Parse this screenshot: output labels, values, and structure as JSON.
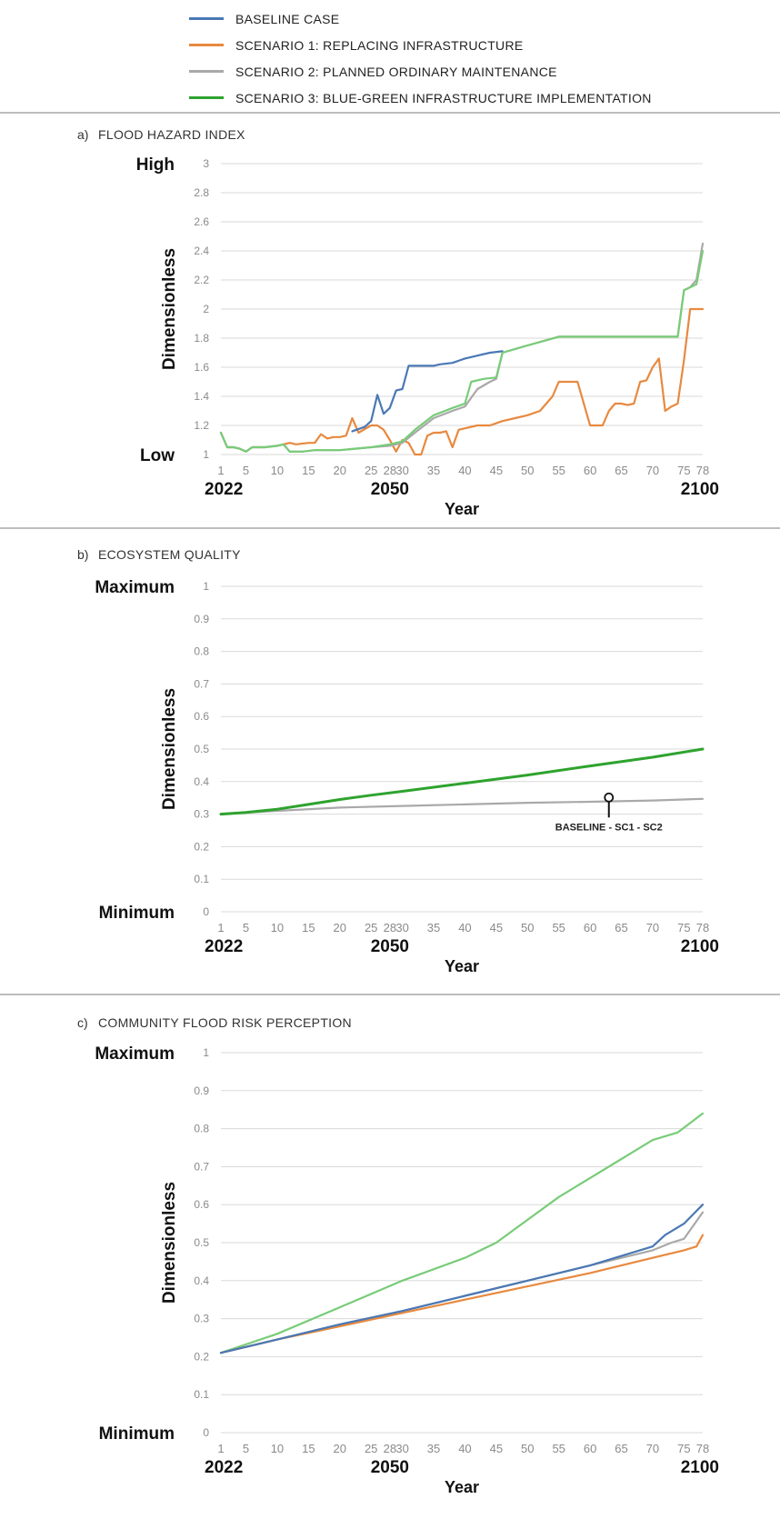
{
  "colors": {
    "baseline": "#4a78b4",
    "sc1": "#e8893f",
    "sc2": "#a9a9a9",
    "sc3": "#2ea32e",
    "sc3_light": "#78cc78",
    "grid": "#dadada"
  },
  "legend": [
    {
      "label": "BASELINE CASE",
      "color": "#4a78b4"
    },
    {
      "label": "SCENARIO 1: REPLACING INFRASTRUCTURE",
      "color": "#e8893f"
    },
    {
      "label": "SCENARIO 2: PLANNED ORDINARY MAINTENANCE",
      "color": "#a9a9a9"
    },
    {
      "label": "SCENARIO 3: BLUE-GREEN INFRASTRUCTURE IMPLEMENTATION",
      "color": "#2ea32e"
    }
  ],
  "chart_data": [
    {
      "type": "line",
      "panel_letter": "a)",
      "title": "FLOOD HAZARD INDEX",
      "ylabel": "Dimensionless",
      "xlabel": "Year",
      "ylim": [
        1,
        3
      ],
      "yticks": [
        "1",
        "1.2",
        "1.4",
        "1.6",
        "1.8",
        "2",
        "2.2",
        "2.4",
        "2.6",
        "2.8",
        "3"
      ],
      "ytick_values": [
        1,
        1.2,
        1.4,
        1.6,
        1.8,
        2,
        2.2,
        2.4,
        2.6,
        2.8,
        3
      ],
      "y_top_label": "High",
      "y_bottom_label": "Low",
      "xlim": [
        1,
        78
      ],
      "xticks": [
        "1",
        "5",
        "10",
        "15",
        "20",
        "25",
        "28",
        "30",
        "35",
        "40",
        "45",
        "50",
        "55",
        "60",
        "65",
        "70",
        "75",
        "78"
      ],
      "year_labels": [
        {
          "x": 1,
          "label": "2022"
        },
        {
          "x": 28,
          "label": "2050"
        },
        {
          "x": 78,
          "label": "2100"
        }
      ],
      "grid": true,
      "series": [
        {
          "key": "sc1",
          "color": "#e8893f",
          "points": [
            [
              1,
              1.15
            ],
            [
              2,
              1.05
            ],
            [
              3,
              1.05
            ],
            [
              4,
              1.04
            ],
            [
              5,
              1.02
            ],
            [
              6,
              1.05
            ],
            [
              8,
              1.05
            ],
            [
              10,
              1.06
            ],
            [
              11,
              1.07
            ],
            [
              12,
              1.08
            ],
            [
              13,
              1.07
            ],
            [
              15,
              1.08
            ],
            [
              16,
              1.08
            ],
            [
              17,
              1.14
            ],
            [
              18,
              1.11
            ],
            [
              19,
              1.12
            ],
            [
              20,
              1.12
            ],
            [
              21,
              1.13
            ],
            [
              22,
              1.25
            ],
            [
              23,
              1.15
            ],
            [
              25,
              1.2
            ],
            [
              26,
              1.2
            ],
            [
              27,
              1.17
            ],
            [
              28,
              1.1
            ],
            [
              29,
              1.02
            ],
            [
              30,
              1.1
            ],
            [
              31,
              1.08
            ],
            [
              32,
              1.0
            ],
            [
              33,
              1.0
            ],
            [
              34,
              1.13
            ],
            [
              35,
              1.15
            ],
            [
              36,
              1.15
            ],
            [
              37,
              1.16
            ],
            [
              38,
              1.05
            ],
            [
              39,
              1.17
            ],
            [
              40,
              1.18
            ],
            [
              42,
              1.2
            ],
            [
              44,
              1.2
            ],
            [
              46,
              1.23
            ],
            [
              48,
              1.25
            ],
            [
              50,
              1.27
            ],
            [
              52,
              1.3
            ],
            [
              54,
              1.4
            ],
            [
              55,
              1.5
            ],
            [
              57,
              1.5
            ],
            [
              58,
              1.5
            ],
            [
              60,
              1.2
            ],
            [
              62,
              1.2
            ],
            [
              63,
              1.3
            ],
            [
              64,
              1.35
            ],
            [
              65,
              1.35
            ],
            [
              66,
              1.34
            ],
            [
              67,
              1.35
            ],
            [
              68,
              1.5
            ],
            [
              69,
              1.51
            ],
            [
              70,
              1.6
            ],
            [
              71,
              1.66
            ],
            [
              72,
              1.3
            ],
            [
              73,
              1.33
            ],
            [
              74,
              1.35
            ],
            [
              75,
              1.65
            ],
            [
              76,
              2.0
            ],
            [
              77,
              2.0
            ],
            [
              78,
              2.0
            ]
          ]
        },
        {
          "key": "sc2",
          "color": "#a9a9a9",
          "points": [
            [
              1,
              1.15
            ],
            [
              2,
              1.05
            ],
            [
              3,
              1.05
            ],
            [
              4,
              1.04
            ],
            [
              5,
              1.02
            ],
            [
              6,
              1.05
            ],
            [
              8,
              1.05
            ],
            [
              10,
              1.06
            ],
            [
              11,
              1.07
            ],
            [
              12,
              1.02
            ],
            [
              14,
              1.02
            ],
            [
              16,
              1.03
            ],
            [
              18,
              1.03
            ],
            [
              20,
              1.03
            ],
            [
              25,
              1.05
            ],
            [
              28,
              1.06
            ],
            [
              30,
              1.08
            ],
            [
              32,
              1.15
            ],
            [
              35,
              1.25
            ],
            [
              38,
              1.3
            ],
            [
              40,
              1.33
            ],
            [
              42,
              1.45
            ],
            [
              44,
              1.5
            ],
            [
              45,
              1.52
            ],
            [
              46,
              1.7
            ],
            [
              50,
              1.75
            ],
            [
              55,
              1.81
            ],
            [
              60,
              1.81
            ],
            [
              65,
              1.81
            ],
            [
              70,
              1.81
            ],
            [
              74,
              1.81
            ],
            [
              75,
              2.13
            ],
            [
              76,
              2.15
            ],
            [
              77,
              2.2
            ],
            [
              78,
              2.45
            ]
          ]
        },
        {
          "key": "baseline",
          "color": "#4a78b4",
          "points": [
            [
              22,
              1.16
            ],
            [
              24,
              1.19
            ],
            [
              25,
              1.23
            ],
            [
              26,
              1.41
            ],
            [
              27,
              1.28
            ],
            [
              28,
              1.32
            ],
            [
              29,
              1.44
            ],
            [
              30,
              1.45
            ],
            [
              31,
              1.61
            ],
            [
              33,
              1.61
            ],
            [
              35,
              1.61
            ],
            [
              36,
              1.62
            ],
            [
              38,
              1.63
            ],
            [
              40,
              1.66
            ],
            [
              42,
              1.68
            ],
            [
              44,
              1.7
            ],
            [
              46,
              1.71
            ]
          ]
        },
        {
          "key": "sc3",
          "color": "#78cc78",
          "points": [
            [
              1,
              1.15
            ],
            [
              2,
              1.05
            ],
            [
              3,
              1.05
            ],
            [
              4,
              1.04
            ],
            [
              5,
              1.02
            ],
            [
              6,
              1.05
            ],
            [
              8,
              1.05
            ],
            [
              10,
              1.06
            ],
            [
              11,
              1.07
            ],
            [
              12,
              1.02
            ],
            [
              14,
              1.02
            ],
            [
              16,
              1.03
            ],
            [
              18,
              1.03
            ],
            [
              20,
              1.03
            ],
            [
              25,
              1.05
            ],
            [
              28,
              1.07
            ],
            [
              30,
              1.09
            ],
            [
              32,
              1.17
            ],
            [
              35,
              1.27
            ],
            [
              38,
              1.32
            ],
            [
              40,
              1.35
            ],
            [
              41,
              1.5
            ],
            [
              43,
              1.52
            ],
            [
              45,
              1.53
            ],
            [
              46,
              1.7
            ],
            [
              50,
              1.75
            ],
            [
              55,
              1.81
            ],
            [
              60,
              1.81
            ],
            [
              65,
              1.81
            ],
            [
              70,
              1.81
            ],
            [
              74,
              1.81
            ],
            [
              75,
              2.13
            ],
            [
              76,
              2.15
            ],
            [
              77,
              2.17
            ],
            [
              78,
              2.4
            ]
          ]
        }
      ]
    },
    {
      "type": "line",
      "panel_letter": "b)",
      "title": "ECOSYSTEM QUALITY",
      "ylabel": "Dimensionless",
      "xlabel": "Year",
      "ylim": [
        0,
        1
      ],
      "yticks": [
        "0",
        "0.1",
        "0.2",
        "0.3",
        "0.4",
        "0.5",
        "0.6",
        "0.7",
        "0.8",
        "0.9",
        "1"
      ],
      "ytick_values": [
        0,
        0.1,
        0.2,
        0.3,
        0.4,
        0.5,
        0.6,
        0.7,
        0.8,
        0.9,
        1
      ],
      "y_top_label": "Maximum",
      "y_bottom_label": "Minimum",
      "xlim": [
        1,
        78
      ],
      "xticks": [
        "1",
        "5",
        "10",
        "15",
        "20",
        "25",
        "28",
        "30",
        "35",
        "40",
        "45",
        "50",
        "55",
        "60",
        "65",
        "70",
        "75",
        "78"
      ],
      "year_labels": [
        {
          "x": 1,
          "label": "2022"
        },
        {
          "x": 28,
          "label": "2050"
        },
        {
          "x": 78,
          "label": "2100"
        }
      ],
      "grid": true,
      "annotation": {
        "text": "BASELINE - SC1 - SC2",
        "x": 63,
        "y": 0.34
      },
      "series": [
        {
          "key": "sc2",
          "color": "#a9a9a9",
          "points": [
            [
              1,
              0.3
            ],
            [
              10,
              0.31
            ],
            [
              20,
              0.32
            ],
            [
              30,
              0.325
            ],
            [
              40,
              0.33
            ],
            [
              50,
              0.335
            ],
            [
              60,
              0.338
            ],
            [
              70,
              0.342
            ],
            [
              78,
              0.347
            ]
          ]
        },
        {
          "key": "sc3",
          "color": "#2ea32e",
          "points": [
            [
              1,
              0.3
            ],
            [
              5,
              0.305
            ],
            [
              10,
              0.315
            ],
            [
              15,
              0.33
            ],
            [
              20,
              0.345
            ],
            [
              25,
              0.358
            ],
            [
              30,
              0.37
            ],
            [
              40,
              0.395
            ],
            [
              50,
              0.42
            ],
            [
              60,
              0.448
            ],
            [
              70,
              0.475
            ],
            [
              78,
              0.5
            ]
          ]
        }
      ]
    },
    {
      "type": "line",
      "panel_letter": "c)",
      "title": "COMMUNITY FLOOD RISK PERCEPTION",
      "ylabel": "Dimensionless",
      "xlabel": "Year",
      "ylim": [
        0,
        1
      ],
      "yticks": [
        "0",
        "0.1",
        "0.2",
        "0.3",
        "0.4",
        "0.5",
        "0.6",
        "0.7",
        "0.8",
        "0.9",
        "1"
      ],
      "ytick_values": [
        0,
        0.1,
        0.2,
        0.3,
        0.4,
        0.5,
        0.6,
        0.7,
        0.8,
        0.9,
        1
      ],
      "y_top_label": "Maximum",
      "y_bottom_label": "Minimum",
      "xlim": [
        1,
        78
      ],
      "xticks": [
        "1",
        "5",
        "10",
        "15",
        "20",
        "25",
        "28",
        "30",
        "35",
        "40",
        "45",
        "50",
        "55",
        "60",
        "65",
        "70",
        "75",
        "78"
      ],
      "year_labels": [
        {
          "x": 1,
          "label": "2022"
        },
        {
          "x": 28,
          "label": "2050"
        },
        {
          "x": 78,
          "label": "2100"
        }
      ],
      "grid": true,
      "series": [
        {
          "key": "sc3",
          "color": "#78cc78",
          "points": [
            [
              1,
              0.21
            ],
            [
              10,
              0.26
            ],
            [
              20,
              0.33
            ],
            [
              30,
              0.4
            ],
            [
              40,
              0.46
            ],
            [
              45,
              0.5
            ],
            [
              50,
              0.56
            ],
            [
              55,
              0.62
            ],
            [
              60,
              0.67
            ],
            [
              65,
              0.72
            ],
            [
              70,
              0.77
            ],
            [
              74,
              0.79
            ],
            [
              78,
              0.84
            ]
          ]
        },
        {
          "key": "sc2",
          "color": "#a9a9a9",
          "points": [
            [
              1,
              0.21
            ],
            [
              10,
              0.245
            ],
            [
              20,
              0.285
            ],
            [
              30,
              0.32
            ],
            [
              40,
              0.36
            ],
            [
              50,
              0.4
            ],
            [
              60,
              0.44
            ],
            [
              70,
              0.48
            ],
            [
              73,
              0.5
            ],
            [
              75,
              0.51
            ],
            [
              78,
              0.58
            ]
          ]
        },
        {
          "key": "sc1",
          "color": "#e8893f",
          "points": [
            [
              1,
              0.21
            ],
            [
              10,
              0.245
            ],
            [
              20,
              0.28
            ],
            [
              30,
              0.315
            ],
            [
              40,
              0.35
            ],
            [
              50,
              0.385
            ],
            [
              60,
              0.42
            ],
            [
              70,
              0.46
            ],
            [
              75,
              0.48
            ],
            [
              77,
              0.49
            ],
            [
              78,
              0.52
            ]
          ]
        },
        {
          "key": "baseline",
          "color": "#4a78b4",
          "points": [
            [
              1,
              0.21
            ],
            [
              10,
              0.245
            ],
            [
              20,
              0.285
            ],
            [
              30,
              0.32
            ],
            [
              40,
              0.36
            ],
            [
              50,
              0.4
            ],
            [
              60,
              0.44
            ],
            [
              70,
              0.49
            ],
            [
              72,
              0.52
            ],
            [
              75,
              0.55
            ],
            [
              78,
              0.6
            ]
          ]
        }
      ]
    }
  ]
}
